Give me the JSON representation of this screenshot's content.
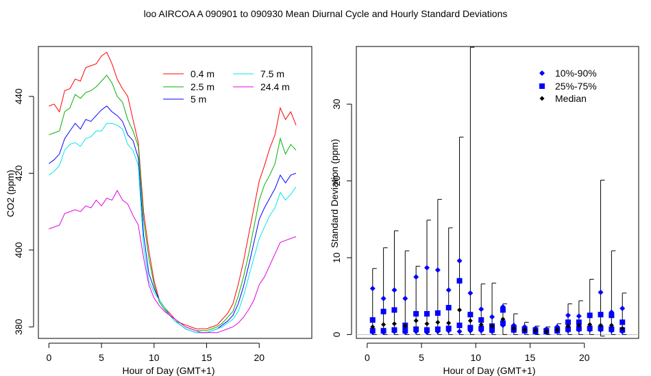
{
  "title": "loo   AIRCOA A   090901 to 090930   Mean Diurnal Cycle and Hourly Standard Deviations",
  "colors": {
    "h0_4": "#ff0000",
    "h2_5": "#00b000",
    "h5": "#0000ff",
    "h7_5": "#00e5e5",
    "h24_4": "#e000e0",
    "p10_90": "#0000ff",
    "p25_75": "#0000ff",
    "median": "#000000",
    "axis": "#000000",
    "baseline": "#bebebe"
  },
  "chart_data": [
    {
      "type": "line",
      "xlabel": "Hour of Day (GMT+1)",
      "ylabel": "CO2 (ppm)",
      "xlim": [
        -1,
        25
      ],
      "ylim": [
        377,
        453
      ],
      "xticks": [
        0,
        5,
        10,
        15,
        20
      ],
      "yticks": [
        380,
        400,
        420,
        440
      ],
      "legend": "top-right",
      "series": [
        {
          "name": "0.4 m",
          "color_key": "h0_4",
          "x": [
            0,
            0.5,
            1,
            1.5,
            2,
            2.5,
            3,
            3.5,
            4,
            4.5,
            5,
            5.5,
            6,
            6.5,
            7,
            7.5,
            8,
            8.5,
            9,
            9.5,
            10,
            10.5,
            11,
            11.5,
            12,
            12.5,
            13,
            13.5,
            14,
            14.5,
            15,
            15.5,
            16,
            16.5,
            17,
            17.5,
            18,
            18.5,
            19,
            19.5,
            20,
            20.5,
            21,
            21.5,
            22,
            22.5,
            23,
            23.5
          ],
          "y": [
            437.5,
            438,
            436,
            441.5,
            442,
            444.5,
            444,
            447.5,
            448,
            448.5,
            450.5,
            451.5,
            448.5,
            444.5,
            442,
            440,
            434,
            428,
            410,
            400,
            392,
            387,
            385,
            383.5,
            382,
            381,
            380.5,
            380,
            379.5,
            379.5,
            379.5,
            380,
            380.5,
            382,
            383.5,
            386,
            391,
            397,
            404,
            411,
            418,
            422,
            426.5,
            430,
            437,
            434,
            436,
            432.5
          ]
        },
        {
          "name": "2.5 m",
          "color_key": "h2_5",
          "x": [
            0,
            0.5,
            1,
            1.5,
            2,
            2.5,
            3,
            3.5,
            4,
            4.5,
            5,
            5.5,
            6,
            6.5,
            7,
            7.5,
            8,
            8.5,
            9,
            9.5,
            10,
            10.5,
            11,
            11.5,
            12,
            12.5,
            13,
            13.5,
            14,
            14.5,
            15,
            15.5,
            16,
            16.5,
            17,
            17.5,
            18,
            18.5,
            19,
            19.5,
            20,
            20.5,
            21,
            21.5,
            22,
            22.5,
            23,
            23.5
          ],
          "y": [
            430,
            430.5,
            431,
            436,
            437,
            440.5,
            439.5,
            441,
            441.5,
            442.5,
            444,
            445.5,
            443.5,
            440,
            438.5,
            434,
            431,
            427,
            408,
            398,
            391,
            386.5,
            384.5,
            383,
            381.5,
            381,
            380,
            379.5,
            379,
            379,
            379,
            379.5,
            380,
            381,
            382.5,
            384,
            388,
            393,
            399,
            406,
            413,
            417,
            419.5,
            422.5,
            429,
            425,
            427.5,
            426
          ]
        },
        {
          "name": "5 m",
          "color_key": "h5",
          "x": [
            0,
            0.5,
            1,
            1.5,
            2,
            2.5,
            3,
            3.5,
            4,
            4.5,
            5,
            5.5,
            6,
            6.5,
            7,
            7.5,
            8,
            8.5,
            9,
            9.5,
            10,
            10.5,
            11,
            11.5,
            12,
            12.5,
            13,
            13.5,
            14,
            14.5,
            15,
            15.5,
            16,
            16.5,
            17,
            17.5,
            18,
            18.5,
            19,
            19.5,
            20,
            20.5,
            21,
            21.5,
            22,
            22.5,
            23,
            23.5
          ],
          "y": [
            422.5,
            423.5,
            425,
            429,
            431,
            433,
            431.5,
            434,
            433.5,
            435,
            436.5,
            437.5,
            436,
            435,
            433.5,
            430,
            428.5,
            424,
            404,
            394,
            390,
            387,
            385,
            383,
            381.5,
            380.5,
            379.5,
            379,
            378.5,
            378.5,
            378.5,
            379,
            379.5,
            380.5,
            381.5,
            383,
            386,
            390.5,
            396,
            402,
            408,
            411,
            413.5,
            416,
            419.5,
            417.5,
            419.5,
            420
          ]
        },
        {
          "name": "7.5 m",
          "color_key": "h7_5",
          "x": [
            0,
            0.5,
            1,
            1.5,
            2,
            2.5,
            3,
            3.5,
            4,
            4.5,
            5,
            5.5,
            6,
            6.5,
            7,
            7.5,
            8,
            8.5,
            9,
            9.5,
            10,
            10.5,
            11,
            11.5,
            12,
            12.5,
            13,
            13.5,
            14,
            14.5,
            15,
            15.5,
            16,
            16.5,
            17,
            17.5,
            18,
            18.5,
            19,
            19.5,
            20,
            20.5,
            21,
            21.5,
            22,
            22.5,
            23,
            23.5
          ],
          "y": [
            419.5,
            420.5,
            422,
            426,
            427.5,
            428,
            427,
            429,
            429.5,
            431,
            431,
            433,
            433,
            432.5,
            431.5,
            427.5,
            426,
            422,
            401,
            392,
            389,
            387,
            385,
            383,
            381.5,
            380.5,
            379.5,
            379,
            378.5,
            378.5,
            378.5,
            379,
            379.5,
            380,
            381,
            382,
            384,
            388,
            393,
            398,
            403,
            406,
            409,
            411,
            415,
            413,
            414.5,
            416.5
          ]
        },
        {
          "name": "24.4 m",
          "color_key": "h24_4",
          "x": [
            0,
            0.5,
            1,
            1.5,
            2,
            2.5,
            3,
            3.5,
            4,
            4.5,
            5,
            5.5,
            6,
            6.5,
            7,
            7.5,
            8,
            8.5,
            9,
            9.5,
            10,
            10.5,
            11,
            11.5,
            12,
            12.5,
            13,
            13.5,
            14,
            14.5,
            15,
            15.5,
            16,
            16.5,
            17,
            17.5,
            18,
            18.5,
            19,
            19.5,
            20,
            20.5,
            21,
            21.5,
            22,
            22.5,
            23,
            23.5
          ],
          "y": [
            405.5,
            406,
            406.5,
            409.5,
            410,
            410.5,
            410,
            411.5,
            411,
            413,
            411.5,
            413.5,
            413,
            415.5,
            413,
            412,
            409,
            406.5,
            398,
            391,
            387.5,
            385.5,
            384,
            383,
            382,
            381,
            380,
            379.5,
            379,
            378.5,
            378.5,
            378.5,
            378.5,
            379,
            379.5,
            380,
            381,
            382.5,
            384.5,
            387,
            391,
            393,
            396,
            399,
            402,
            402.5,
            403,
            403.5
          ]
        }
      ]
    },
    {
      "type": "scatter",
      "xlabel": "Hour of Day (GMT+1)",
      "ylabel": "Standard Deviation (ppm)",
      "xlim": [
        -1,
        25
      ],
      "ylim": [
        -0.5,
        37.5
      ],
      "xticks": [
        0,
        5,
        10,
        15,
        20
      ],
      "yticks": [
        0,
        10,
        20,
        30
      ],
      "legend": "top-right",
      "legend_labels": [
        "10%-90%",
        "25%-75%",
        "Median"
      ],
      "x": [
        0.5,
        1.5,
        2.5,
        3.5,
        4.5,
        5.5,
        6.5,
        7.5,
        8.5,
        9.5,
        10.5,
        11.5,
        12.5,
        13.5,
        14.5,
        15.5,
        16.5,
        17.5,
        18.5,
        19.5,
        20.5,
        21.5,
        22.5,
        23.5
      ],
      "max": [
        8.6,
        11.3,
        13.5,
        10.9,
        8.9,
        14.9,
        17.6,
        13.9,
        25.7,
        37.4,
        6.6,
        6.7,
        4.0,
        2.7,
        1.6,
        1.1,
        1.0,
        1.4,
        4.0,
        4.4,
        7.2,
        20.1,
        10.9,
        5.4
      ],
      "min": [
        0.0,
        0.0,
        0.0,
        0.0,
        0.0,
        0.0,
        0.0,
        0.0,
        0.0,
        0.0,
        0.0,
        0.0,
        0.0,
        0.0,
        0.0,
        0.0,
        0.0,
        0.0,
        0.0,
        0.0,
        0.0,
        -0.2,
        0.0,
        0.0
      ],
      "p10": [
        0.3,
        0.3,
        0.4,
        0.3,
        0.4,
        0.3,
        0.4,
        0.5,
        0.4,
        0.5,
        0.5,
        0.4,
        1.2,
        0.5,
        0.4,
        0.3,
        0.3,
        0.4,
        0.5,
        0.6,
        0.6,
        0.6,
        0.5,
        0.4
      ],
      "p90": [
        6.0,
        4.7,
        5.8,
        4.7,
        7.5,
        8.7,
        8.4,
        5.8,
        9.6,
        5.4,
        3.3,
        2.3,
        3.6,
        1.2,
        1.0,
        0.8,
        0.7,
        1.0,
        2.5,
        2.4,
        2.5,
        5.5,
        2.9,
        3.4
      ],
      "p25": [
        0.5,
        0.5,
        0.6,
        0.5,
        0.7,
        0.6,
        0.7,
        0.8,
        1.2,
        0.9,
        0.8,
        0.6,
        1.5,
        0.6,
        0.5,
        0.4,
        0.4,
        0.5,
        0.7,
        0.8,
        0.8,
        0.8,
        0.7,
        0.6
      ],
      "p75": [
        1.9,
        3.0,
        3.2,
        1.2,
        2.7,
        2.7,
        2.8,
        3.5,
        7.0,
        2.6,
        1.9,
        1.1,
        3.2,
        0.9,
        0.7,
        0.6,
        0.5,
        0.7,
        1.6,
        1.6,
        2.5,
        2.6,
        2.5,
        1.6
      ],
      "median": [
        1.0,
        1.3,
        1.4,
        1.1,
        1.8,
        1.4,
        1.6,
        1.5,
        3.2,
        1.8,
        1.3,
        1.1,
        2.0,
        0.8,
        0.6,
        0.5,
        0.4,
        0.6,
        1.1,
        1.2,
        1.3,
        1.2,
        1.2,
        0.8
      ]
    }
  ]
}
